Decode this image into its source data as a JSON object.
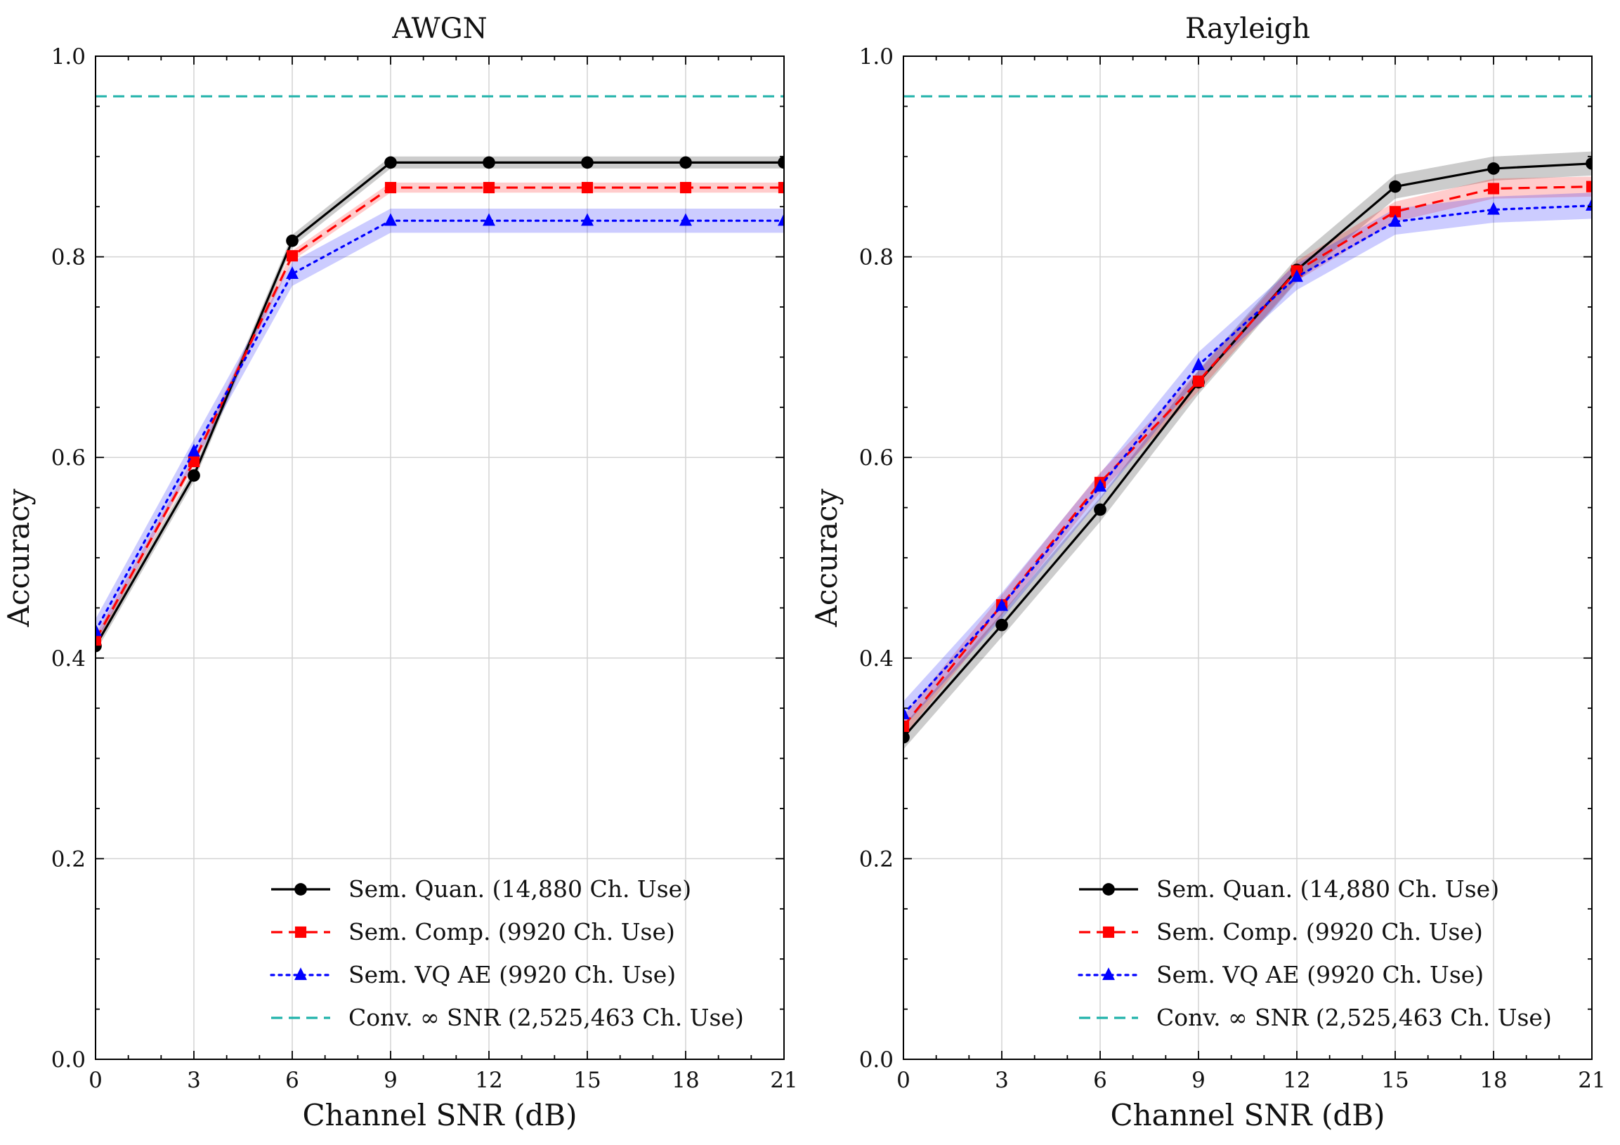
{
  "chart_data": [
    {
      "type": "line",
      "title": "AWGN",
      "xlabel": "Channel SNR (dB)",
      "ylabel": "Accuracy",
      "xlim": [
        0,
        21
      ],
      "ylim": [
        0.0,
        1.0
      ],
      "xticks": [
        0,
        3,
        6,
        9,
        12,
        15,
        18,
        21
      ],
      "xtick_labels": [
        "0",
        "3",
        "6",
        "9",
        "12",
        "15",
        "18",
        "21"
      ],
      "yticks": [
        0.0,
        0.2,
        0.4,
        0.6,
        0.8,
        1.0
      ],
      "ytick_labels": [
        "0.0",
        "0.2",
        "0.4",
        "0.6",
        "0.8",
        "1.0"
      ],
      "grid": true,
      "legend_position": "lower-right",
      "x": [
        0,
        3,
        6,
        9,
        12,
        15,
        18,
        21
      ],
      "series": [
        {
          "name": "Sem. Quan. (14,880 Ch. Use)",
          "color": "#000000",
          "dash": "solid",
          "marker": "circle",
          "values": [
            0.412,
            0.582,
            0.816,
            0.894,
            0.894,
            0.894,
            0.894,
            0.894
          ],
          "band": 0.006
        },
        {
          "name": "Sem. Comp. (9920 Ch. Use)",
          "color": "#ff0000",
          "dash": "dashed",
          "marker": "square",
          "values": [
            0.418,
            0.596,
            0.801,
            0.869,
            0.869,
            0.869,
            0.869,
            0.869
          ],
          "band": 0.005
        },
        {
          "name": "Sem. VQ AE (9920 Ch. Use)",
          "color": "#0000ff",
          "dash": "dotted",
          "marker": "triangle",
          "values": [
            0.427,
            0.606,
            0.783,
            0.836,
            0.836,
            0.836,
            0.836,
            0.836
          ],
          "band": 0.012
        }
      ],
      "reference": {
        "name": "Conv. ∞ SNR (2,525,463 Ch. Use)",
        "color": "#20b2aa",
        "value": 0.96
      }
    },
    {
      "type": "line",
      "title": "Rayleigh",
      "xlabel": "Channel SNR (dB)",
      "ylabel": "Accuracy",
      "xlim": [
        0,
        21
      ],
      "ylim": [
        0.0,
        1.0
      ],
      "xticks": [
        0,
        3,
        6,
        9,
        12,
        15,
        18,
        21
      ],
      "xtick_labels": [
        "0",
        "3",
        "6",
        "9",
        "12",
        "15",
        "18",
        "21"
      ],
      "yticks": [
        0.0,
        0.2,
        0.4,
        0.6,
        0.8,
        1.0
      ],
      "ytick_labels": [
        "0.0",
        "0.2",
        "0.4",
        "0.6",
        "0.8",
        "1.0"
      ],
      "grid": true,
      "legend_position": "lower-right",
      "x": [
        0,
        3,
        6,
        9,
        12,
        15,
        18,
        21
      ],
      "series": [
        {
          "name": "Sem. Quan. (14,880 Ch. Use)",
          "color": "#000000",
          "dash": "solid",
          "marker": "circle",
          "values": [
            0.321,
            0.433,
            0.548,
            0.675,
            0.787,
            0.87,
            0.888,
            0.893
          ],
          "band": 0.012
        },
        {
          "name": "Sem. Comp. (9920 Ch. Use)",
          "color": "#ff0000",
          "dash": "dashed",
          "marker": "square",
          "values": [
            0.332,
            0.453,
            0.575,
            0.676,
            0.786,
            0.845,
            0.868,
            0.87
          ],
          "band": 0.01
        },
        {
          "name": "Sem. VQ AE (9920 Ch. Use)",
          "color": "#0000ff",
          "dash": "dotted",
          "marker": "triangle",
          "values": [
            0.344,
            0.452,
            0.571,
            0.692,
            0.78,
            0.835,
            0.847,
            0.851
          ],
          "band": 0.013
        }
      ],
      "reference": {
        "name": "Conv. ∞ SNR (2,525,463 Ch. Use)",
        "color": "#20b2aa",
        "value": 0.96
      }
    }
  ]
}
